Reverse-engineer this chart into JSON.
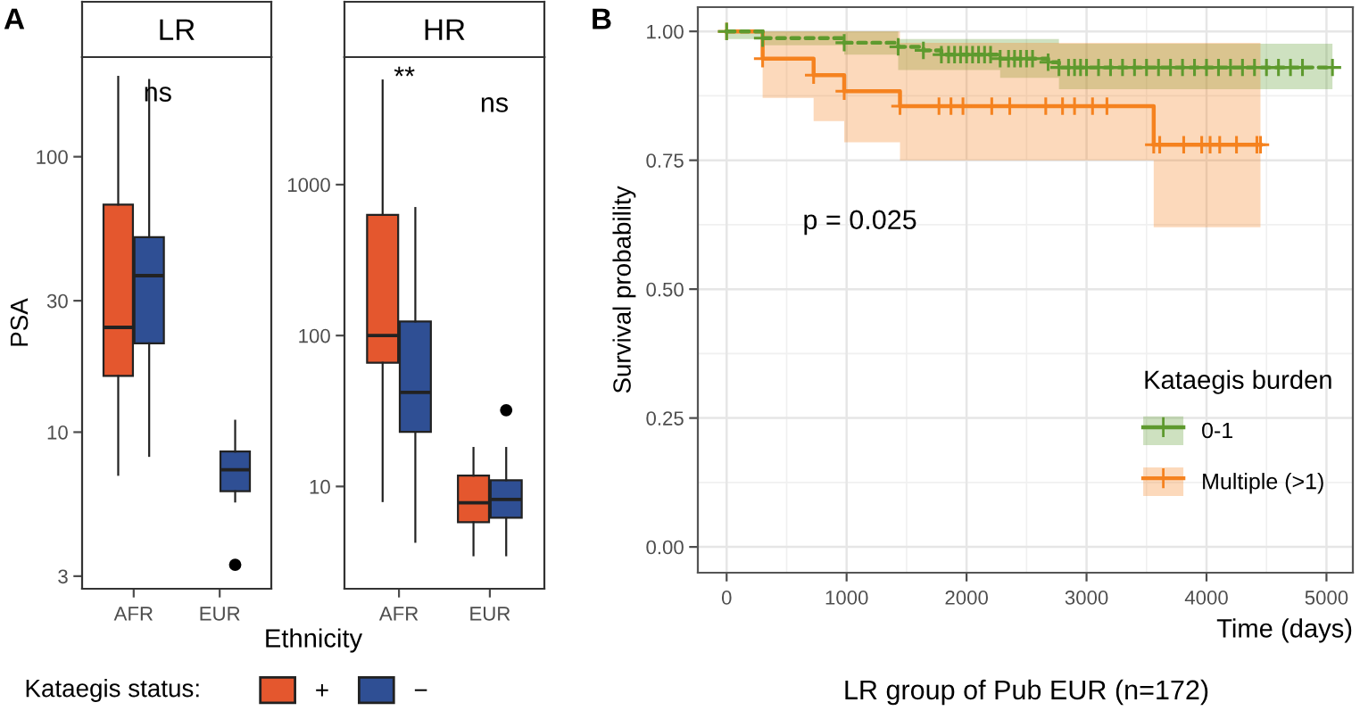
{
  "chart_data": [
    {
      "type": "box",
      "title": "LR",
      "xlabel": "Ethnicity",
      "ylabel": "PSA",
      "categories": [
        "AFR",
        "EUR"
      ],
      "log": "y",
      "ylim": [
        2.7,
        230
      ],
      "yticks": [
        3,
        10,
        30,
        100
      ],
      "legend": "bottom",
      "legend_title": "Kataegis status:",
      "grid": false,
      "annotations": [
        "A",
        "ns"
      ],
      "series": [
        {
          "name": "+",
          "color": "#e4572e",
          "boxes": [
            {
              "low": 7,
              "q1": 16,
              "median": 24,
              "q3": 67,
              "high": 195
            },
            null
          ]
        },
        {
          "name": "−",
          "color": "#2f4f94",
          "boxes": [
            {
              "low": 8.2,
              "q1": 21,
              "median": 37,
              "q3": 51,
              "high": 190
            },
            {
              "low": 5.6,
              "q1": 6.1,
              "median": 7.3,
              "q3": 8.5,
              "high": 11,
              "outliers": [
                3.3
              ]
            }
          ]
        }
      ]
    },
    {
      "type": "box",
      "title": "HR",
      "categories": [
        "AFR",
        "EUR"
      ],
      "log": "y",
      "ylim": [
        2.1,
        7000
      ],
      "yticks": [
        10,
        100,
        1000
      ],
      "grid": false,
      "annotations": [
        "**",
        "ns"
      ],
      "series": [
        {
          "color": "#e4572e",
          "boxes": [
            {
              "low": 8,
              "q1": 66,
              "median": 100,
              "q3": 630,
              "high": 4900
            },
            {
              "low": 3.5,
              "q1": 5.8,
              "median": 7.8,
              "q3": 11.8,
              "high": 18
            }
          ]
        },
        {
          "color": "#2f4f94",
          "boxes": [
            {
              "low": 4.3,
              "q1": 23,
              "median": 42,
              "q3": 124,
              "high": 700
            },
            {
              "low": 3.5,
              "q1": 6.2,
              "median": 8.2,
              "q3": 11,
              "high": 18,
              "outliers": [
                32
              ]
            }
          ]
        }
      ]
    },
    {
      "type": "step",
      "xlabel": "Time (days)",
      "ylabel": "Survival probability",
      "legend_title": "Kataegis burden",
      "legend": "bottom right",
      "grid": true,
      "marker": "cross",
      "xlim": [
        -240,
        5220
      ],
      "xticks": [
        0,
        1000,
        2000,
        3000,
        4000,
        5000
      ],
      "ylim": [
        -0.05,
        1.047
      ],
      "yticks": [
        {
          "value": 0,
          "label": "0.00"
        },
        {
          "value": 0.25,
          "label": "0.25"
        },
        {
          "value": 0.5,
          "label": "0.50"
        },
        {
          "value": 0.75,
          "label": "0.75"
        },
        {
          "value": 1,
          "label": "1.00"
        }
      ],
      "annotations": [
        "B",
        "p = 0.025",
        "LR group of Pub EUR (n=172)"
      ],
      "series": [
        {
          "name": "0-1",
          "color": "#5e9a2e",
          "line_style": "dashed",
          "x": [
            0,
            300,
            980,
            1430,
            1640,
            1790,
            1850,
            1900,
            1950,
            2000,
            2050,
            2100,
            2150,
            2200,
            2280,
            2350,
            2400,
            2450,
            2500,
            2550,
            2680,
            2770,
            2850,
            2900,
            2950,
            3000,
            3100,
            3200,
            3300,
            3400,
            3500,
            3600,
            3700,
            3800,
            3900,
            4000,
            4100,
            4200,
            4300,
            4400,
            4500,
            4600,
            4700,
            4800,
            5050
          ],
          "values": [
            1,
            0.987,
            0.978,
            0.97,
            0.963,
            0.955,
            0.955,
            0.955,
            0.955,
            0.955,
            0.955,
            0.955,
            0.955,
            0.955,
            0.947,
            0.947,
            0.947,
            0.947,
            0.947,
            0.947,
            0.94,
            0.93,
            0.93,
            0.93,
            0.93,
            0.93,
            0.93,
            0.93,
            0.93,
            0.93,
            0.93,
            0.93,
            0.93,
            0.93,
            0.93,
            0.93,
            0.93,
            0.93,
            0.93,
            0.93,
            0.93,
            0.93,
            0.93,
            0.93,
            0.93
          ],
          "lower": [
            0.985,
            0.973,
            0.955,
            0.925,
            0.925,
            0.925,
            0.925,
            0.925,
            0.925,
            0.925,
            0.925,
            0.925,
            0.925,
            0.925,
            0.91,
            0.91,
            0.91,
            0.91,
            0.91,
            0.91,
            0.91,
            0.888,
            0.888,
            0.888,
            0.888,
            0.888,
            0.888,
            0.888,
            0.888,
            0.888,
            0.888,
            0.888,
            0.888,
            0.888,
            0.888,
            0.888,
            0.888,
            0.888,
            0.888,
            0.888,
            0.888,
            0.888,
            0.888,
            0.888,
            0.888
          ],
          "upper": [
            1,
            1,
            1,
            0.985,
            0.985,
            0.985,
            0.985,
            0.985,
            0.985,
            0.985,
            0.985,
            0.985,
            0.985,
            0.985,
            0.985,
            0.985,
            0.985,
            0.985,
            0.985,
            0.985,
            0.985,
            0.976,
            0.976,
            0.976,
            0.976,
            0.976,
            0.976,
            0.976,
            0.976,
            0.976,
            0.976,
            0.976,
            0.976,
            0.976,
            0.976,
            0.976,
            0.976,
            0.976,
            0.976,
            0.976,
            0.976,
            0.976,
            0.976,
            0.976,
            0.976
          ]
        },
        {
          "name": "Multiple (>1)",
          "color": "#f5821f",
          "x": [
            0,
            300,
            725,
            980,
            1445,
            1770,
            1870,
            1970,
            2210,
            2360,
            2660,
            2800,
            2900,
            3050,
            3170,
            3560,
            3610,
            3810,
            3960,
            4030,
            4110,
            4250,
            4420,
            4450
          ],
          "values": [
            1,
            0.947,
            0.915,
            0.884,
            0.855,
            0.855,
            0.855,
            0.855,
            0.855,
            0.855,
            0.855,
            0.855,
            0.855,
            0.855,
            0.855,
            0.78,
            0.78,
            0.78,
            0.78,
            0.78,
            0.78,
            0.78,
            0.78,
            0.78
          ],
          "lower": [
            1,
            0.871,
            0.826,
            0.785,
            0.75,
            0.75,
            0.75,
            0.75,
            0.75,
            0.75,
            0.75,
            0.75,
            0.75,
            0.75,
            0.75,
            0.62,
            0.62,
            0.62,
            0.62,
            0.62,
            0.62,
            0.62,
            0.62,
            0.62
          ],
          "upper": [
            1,
            1,
            1,
            1,
            0.978,
            0.978,
            0.978,
            0.978,
            0.978,
            0.978,
            0.978,
            0.978,
            0.978,
            0.978,
            0.978,
            0.978,
            0.978,
            0.978,
            0.978,
            0.978,
            0.978,
            0.978,
            0.978,
            0.978
          ]
        }
      ]
    }
  ]
}
